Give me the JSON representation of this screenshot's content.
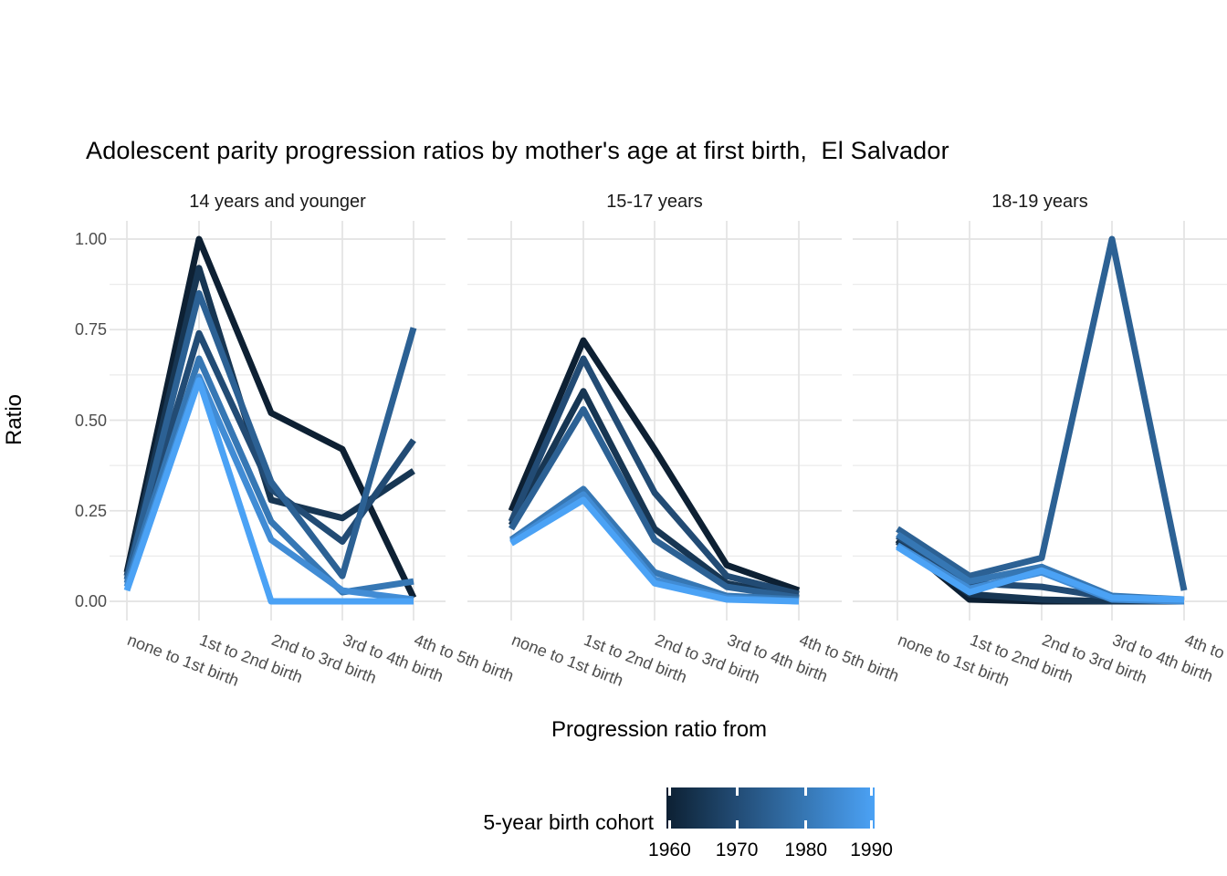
{
  "title": "Adolescent parity progression ratios by mother's age at first birth,  El Salvador",
  "y_axis": {
    "title": "Ratio",
    "ticks": [
      {
        "label": "1.00",
        "value": 1.0
      },
      {
        "label": "0.75",
        "value": 0.75
      },
      {
        "label": "0.50",
        "value": 0.5
      },
      {
        "label": "0.25",
        "value": 0.25
      },
      {
        "label": "0.00",
        "value": 0.0
      }
    ]
  },
  "x_axis": {
    "title": "Progression ratio from"
  },
  "legend": {
    "title": "5-year birth cohort",
    "tick_labels": [
      "1960",
      "1970",
      "1980",
      "1990"
    ],
    "gradient_colors": [
      "#0d2033",
      "#173653",
      "#224b74",
      "#2c6194",
      "#3677b4",
      "#418cd5",
      "#4ba2f5"
    ]
  },
  "chart_data": {
    "type": "line",
    "title": "Adolescent parity progression ratios by mother's age at first birth,  El Salvador",
    "xlabel": "Progression ratio from",
    "ylabel": "Ratio",
    "ylim": [
      0,
      1
    ],
    "grid": true,
    "y_major_breaks": [
      0,
      0.25,
      0.5,
      0.75,
      1.0
    ],
    "y_minor_breaks": [
      0.125,
      0.375,
      0.625,
      0.875
    ],
    "legend_position": "bottom",
    "legend_type": "colorbar",
    "legend_title": "5-year birth cohort",
    "legend_ticks": [
      1960,
      1970,
      1980,
      1990
    ],
    "categories": [
      "none to 1st birth",
      "1st to 2nd birth",
      "2nd to 3rd birth",
      "3rd to 4th birth",
      "4th to 5th birth"
    ],
    "facets": [
      {
        "label": "14 years and younger",
        "series": [
          {
            "name": "1960",
            "color": "#0d2033",
            "values": [
              0.08,
              1.0,
              0.52,
              0.42,
              0.01
            ]
          },
          {
            "name": "1965",
            "color": "#173653",
            "values": [
              0.07,
              0.92,
              0.28,
              0.23,
              0.36
            ]
          },
          {
            "name": "1970",
            "color": "#224b74",
            "values": [
              0.07,
              0.74,
              0.31,
              0.165,
              0.445
            ]
          },
          {
            "name": "1975",
            "color": "#2c6194",
            "values": [
              0.06,
              0.85,
              0.33,
              0.07,
              0.755
            ]
          },
          {
            "name": "1980",
            "color": "#3677b4",
            "values": [
              0.05,
              0.67,
              0.22,
              0.025,
              0.055
            ]
          },
          {
            "name": "1985",
            "color": "#418cd5",
            "values": [
              0.04,
              0.62,
              0.17,
              0.03,
              0.005
            ]
          },
          {
            "name": "1990",
            "color": "#4ba2f5",
            "values": [
              0.03,
              0.61,
              0.0,
              0.0,
              0.0
            ]
          }
        ]
      },
      {
        "label": "15-17 years",
        "series": [
          {
            "name": "1960",
            "color": "#0d2033",
            "values": [
              0.25,
              0.72,
              0.42,
              0.1,
              0.03
            ]
          },
          {
            "name": "1965",
            "color": "#173653",
            "values": [
              0.21,
              0.58,
              0.2,
              0.05,
              0.01
            ]
          },
          {
            "name": "1970",
            "color": "#224b74",
            "values": [
              0.22,
              0.67,
              0.3,
              0.07,
              0.02
            ]
          },
          {
            "name": "1975",
            "color": "#2c6194",
            "values": [
              0.2,
              0.53,
              0.17,
              0.04,
              0.01
            ]
          },
          {
            "name": "1980",
            "color": "#3677b4",
            "values": [
              0.17,
              0.31,
              0.08,
              0.015,
              0.005
            ]
          },
          {
            "name": "1985",
            "color": "#418cd5",
            "values": [
              0.165,
              0.295,
              0.06,
              0.01,
              0.0
            ]
          },
          {
            "name": "1990",
            "color": "#4ba2f5",
            "values": [
              0.16,
              0.28,
              0.05,
              0.005,
              0.0
            ]
          }
        ]
      },
      {
        "label": "18-19 years",
        "series": [
          {
            "name": "1960",
            "color": "#0d2033",
            "values": [
              0.17,
              0.005,
              0.0,
              0.0,
              0.0
            ]
          },
          {
            "name": "1965",
            "color": "#173653",
            "values": [
              0.165,
              0.02,
              0.005,
              0.0,
              0.0
            ]
          },
          {
            "name": "1970",
            "color": "#224b74",
            "values": [
              0.18,
              0.05,
              0.04,
              0.01,
              0.0
            ]
          },
          {
            "name": "1975",
            "color": "#2c6194",
            "values": [
              0.2,
              0.07,
              0.12,
              1.0,
              0.03
            ]
          },
          {
            "name": "1980",
            "color": "#3677b4",
            "values": [
              0.185,
              0.055,
              0.095,
              0.015,
              0.005
            ]
          },
          {
            "name": "1985",
            "color": "#418cd5",
            "values": [
              0.155,
              0.035,
              0.08,
              0.005,
              0.0
            ]
          },
          {
            "name": "1990",
            "color": "#4ba2f5",
            "values": [
              0.15,
              0.025,
              0.085,
              0.01,
              0.005
            ]
          }
        ]
      }
    ]
  }
}
